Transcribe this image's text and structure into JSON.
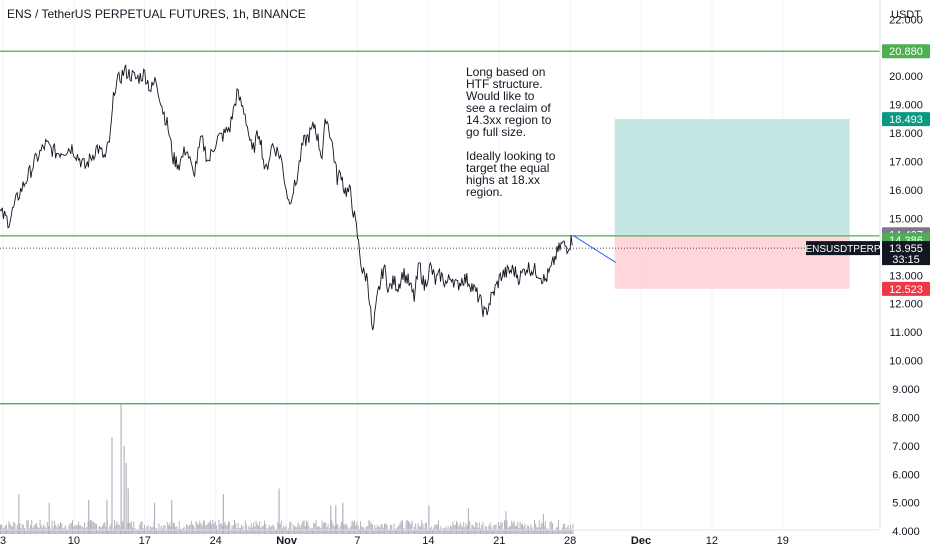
{
  "header": {
    "title": "ENS / TetherUS PERPETUAL FUTURES, 1h, BINANCE",
    "currency": "USDT"
  },
  "annotation": {
    "line1": "Long based on HTF structure. Would like to see a reclaim of 14.3xx region to go full size.",
    "line2": "Ideally looking to target the equal highs at 18.xx region."
  },
  "colors": {
    "level_line": "#4caf50",
    "tp_zone": "#b2dfdb",
    "sl_zone": "#ffcdd2",
    "price_label": "#131722",
    "stop_label": "#f23645",
    "target_label": "#089981",
    "level_label": "#4caf50",
    "entry_label": "#787b86",
    "volume": "#b2b5be"
  },
  "chart_data": {
    "type": "line",
    "symbol_label": "ENSUSDTPERP",
    "last_price": "13.955",
    "countdown": "33:15",
    "y_ticks": [
      "22.000",
      "21.000",
      "20.000",
      "19.000",
      "18.000",
      "17.000",
      "16.000",
      "15.000",
      "14.000",
      "13.000",
      "12.000",
      "11.000",
      "10.000",
      "9.000",
      "8.000",
      "7.000",
      "6.000",
      "5.000",
      "4.000"
    ],
    "x_ticks": [
      "3",
      "10",
      "17",
      "24",
      "Nov",
      "7",
      "14",
      "21",
      "28",
      "Dec",
      "12",
      "19"
    ],
    "x_tick_pos": [
      3,
      10,
      17,
      24,
      31,
      38,
      45,
      52,
      59,
      66,
      73,
      80
    ],
    "ylim": [
      3.9,
      22.4
    ],
    "xlim": [
      2.7,
      89.6
    ],
    "horizontal_levels": [
      20.88,
      14.386,
      8.483
    ],
    "price_labels": [
      {
        "text": "20.880",
        "value": 20.88,
        "kind": "level"
      },
      {
        "text": "18.493",
        "value": 18.493,
        "kind": "target"
      },
      {
        "text": "14.407",
        "value": 14.407,
        "kind": "entry"
      },
      {
        "text": "14.386",
        "value": 14.386,
        "kind": "level"
      },
      {
        "text": "12.523",
        "value": 12.523,
        "kind": "stop"
      }
    ],
    "position": {
      "x_start": 63.4,
      "x_end": 86.6,
      "entry": 14.407,
      "target": 18.493,
      "stop": 12.523
    },
    "projection": {
      "from": [
        59.3,
        14.4
      ],
      "to": [
        63.5,
        13.45
      ]
    },
    "price_path": {
      "x": [
        2.7,
        3.6,
        4.5,
        5.2,
        6.3,
        7.2,
        8.3,
        9.8,
        11.1,
        12.3,
        13.1,
        13.6,
        14.0,
        15.0,
        16.2,
        17.0,
        17.6,
        18.1,
        18.8,
        19.3,
        19.8,
        20.4,
        21.1,
        21.8,
        22.6,
        23.3,
        24.1,
        24.7,
        25.4,
        26.1,
        26.9,
        27.6,
        28.3,
        28.9,
        29.6,
        30.4,
        31.2,
        31.9,
        32.6,
        33.2,
        33.8,
        34.2,
        34.5,
        34.9,
        35.3,
        35.6,
        36.0,
        36.4,
        36.7,
        37.3,
        37.9,
        38.5,
        39.0,
        39.5,
        40.0,
        40.6,
        41.1,
        41.6,
        42.0,
        42.5,
        43.0,
        43.6,
        44.1,
        44.6,
        45.2,
        45.7,
        46.2,
        46.8,
        47.3,
        47.8,
        48.4,
        49.0,
        49.5,
        50.0,
        50.6,
        51.1,
        51.7,
        52.2,
        52.8,
        53.4,
        54.0,
        54.7,
        55.3,
        55.9,
        56.5,
        57.1,
        57.6,
        58.2,
        58.7,
        59.3
      ],
      "y": [
        15.2,
        14.9,
        15.8,
        16.3,
        17.1,
        17.6,
        17.3,
        17.5,
        16.8,
        17.5,
        17.1,
        17.9,
        19.6,
        20.2,
        19.9,
        20.1,
        19.5,
        19.9,
        18.8,
        18.2,
        17.1,
        16.9,
        17.5,
        16.5,
        17.8,
        17.0,
        17.8,
        17.9,
        18.2,
        19.4,
        18.7,
        17.3,
        18.1,
        16.6,
        17.6,
        17.2,
        15.6,
        16.2,
        17.6,
        17.9,
        18.3,
        17.6,
        17.2,
        18.6,
        18.0,
        17.4,
        16.4,
        16.6,
        16.0,
        15.9,
        14.6,
        13.1,
        12.9,
        10.9,
        12.3,
        13.3,
        12.5,
        12.8,
        12.6,
        13.1,
        12.8,
        12.2,
        13.4,
        12.6,
        13.3,
        12.8,
        13.0,
        12.7,
        13.0,
        12.6,
        12.9,
        12.8,
        12.5,
        12.2,
        11.6,
        12.1,
        12.6,
        13.0,
        13.1,
        13.2,
        12.9,
        13.3,
        13.2,
        13.1,
        12.8,
        13.2,
        13.7,
        14.1,
        14.0,
        14.3
      ]
    },
    "volume_bars": {
      "x": [
        4.5,
        7.5,
        11.4,
        13.2,
        13.7,
        14.6,
        14.9,
        15.1,
        15.3,
        17.9,
        19.6,
        24.7,
        30.2,
        35.3,
        35.8,
        36.5,
        45.0,
        48.9,
        52.6,
        56.3
      ],
      "values": [
        5.3,
        5.0,
        5.1,
        5.1,
        7.3,
        8.5,
        7.0,
        6.4,
        5.5,
        5.0,
        5.1,
        5.3,
        5.5,
        4.9,
        4.9,
        5.0,
        4.9,
        4.8,
        4.7,
        4.6
      ]
    }
  }
}
